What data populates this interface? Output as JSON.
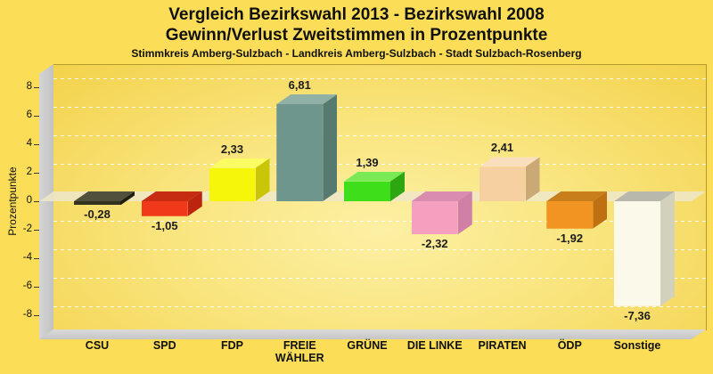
{
  "header": {
    "title_line1": "Vergleich Bezirkswahl 2013 - Bezirkswahl 2008",
    "title_line2": "Gewinn/Verlust Zweitstimmen in Prozentpunkte",
    "subtitle": "Stimmkreis Amberg-Sulzbach - Landkreis Amberg-Sulzbach - Stadt Sulzbach-Rosenberg"
  },
  "axis": {
    "ylabel": "Prozentpunkte",
    "tick_labels": [
      "8",
      "6",
      "4",
      "2",
      "0",
      "-2",
      "-4",
      "-6",
      "-8"
    ]
  },
  "chart_data": {
    "type": "bar",
    "title": "Vergleich Bezirkswahl 2013 - Bezirkswahl 2008",
    "subtitle": "Gewinn/Verlust Zweitstimmen in Prozentpunkte",
    "xlabel": "",
    "ylabel": "Prozentpunkte",
    "ylim": [
      -9.7,
      9.0
    ],
    "grid": true,
    "legend": "none",
    "style": "3d-bars-on-yellow",
    "categories": [
      "CSU",
      "SPD",
      "FDP",
      "FREIE WÄHLER",
      "GRÜNE",
      "DIE LINKE",
      "PIRATEN",
      "ÖDP",
      "Sonstige"
    ],
    "values": [
      -0.28,
      -1.05,
      2.33,
      6.81,
      1.39,
      -2.32,
      2.41,
      -1.92,
      -7.36
    ],
    "value_labels": [
      "-0,28",
      "-1,05",
      "2,33",
      "6,81",
      "1,39",
      "-2,32",
      "2,41",
      "-1,92",
      "-7,36"
    ],
    "bar_styles": [
      {
        "front": "#32321E",
        "top": "#50503C",
        "side": "#1E1E10"
      },
      {
        "front": "#F0391A",
        "top": "#C62C12",
        "side": "#BC2410"
      },
      {
        "front": "#F6F60A",
        "top": "#FBFB64",
        "side": "#C9C509"
      },
      {
        "front": "#6F968C",
        "top": "#91B0A6",
        "side": "#567A70"
      },
      {
        "front": "#3EDE1B",
        "top": "#79EA55",
        "side": "#2EA611"
      },
      {
        "front": "#F6A0BF",
        "top": "#DA8CAE",
        "side": "#D07FA7"
      },
      {
        "front": "#F6D0A0",
        "top": "#FADFBF",
        "side": "#CBA977"
      },
      {
        "front": "#F29421",
        "top": "#C97E1C",
        "side": "#BF7112"
      },
      {
        "front": "#FAF9EA",
        "top": "#B8B8AC",
        "side": "#D3D0BC"
      }
    ]
  },
  "colors": {
    "background": "#FBDD57",
    "plot_center": "#FCF0A4",
    "plot_edge": "#F3D24B",
    "wall": "#D5D5D5",
    "wall_dark": "#C2C2C2",
    "floor": "#DADADA",
    "floor_dark": "#C6C6C6",
    "zero_band": "rgba(238,231,202,0.85)",
    "border": "#B59B2D",
    "grid_line": "rgba(255,255,255,0.9)",
    "text": "#101010"
  }
}
